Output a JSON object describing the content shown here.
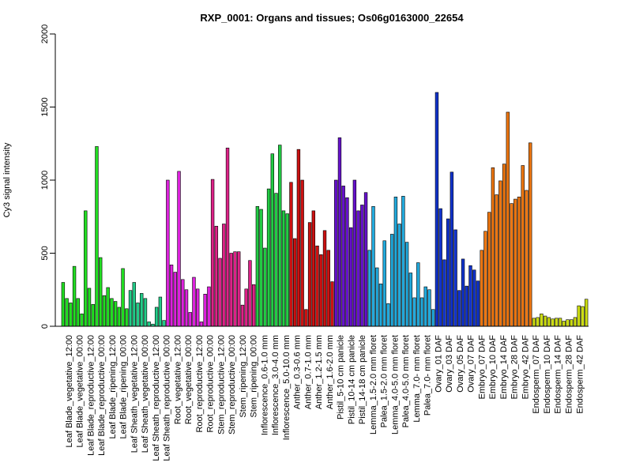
{
  "chart_data": {
    "type": "bar",
    "title": "RXP_0001: Organs and tissues; Os06g0163000_22654",
    "xlabel": "",
    "ylabel": "Cy3 signal intensity",
    "ylim": [
      0,
      2000
    ],
    "yticks": [
      0,
      500,
      1000,
      1500,
      2000
    ],
    "grid": false,
    "legend": "none",
    "x_tick_labels": [
      "Leaf Blade_vegetative_12:00",
      "Leaf Blade_vegetative_00:00",
      "Leaf Blade_reproductive_12:00",
      "Leaf Blade_reproductive_00:00",
      "Leaf Blade_ripening_12:00",
      "Leaf Blade_ripening_00:00",
      "Leaf Sheath_vegetative_12:00",
      "Leaf Sheath_vegetative_00:00",
      "Leaf Sheath_reproductive_12:00",
      "Leaf Sheath_reproductive_00:00",
      "Root_vegetative_12:00",
      "Root_vegetative_00:00",
      "Root_reproductive_12:00",
      "Root_reproductive_00:00",
      "Stem_reproductive_12:00",
      "Stem_reproductive_00:00",
      "Stem_ripening_12:00",
      "Stem_ripening_00:00",
      "Inflorescence_0.6-1.0 mm",
      "Inflorescence_3.0-4.0 mm",
      "Inflorescence_5.0-10.0 mm",
      "Anther_0.3-0.6 mm",
      "Anther_0.7-1.0 mm",
      "Anther_1.2-1.5 mm",
      "Anther_1.6-2.0 mm",
      "Pistil_5-10 cm panicle",
      "Pistil_10-14 cm panicle",
      "Pistil_14-18 cm panicle",
      "Lemma_1.5-2.0 mm floret",
      "Palea_1.5-2.0 mm floret",
      "Lemma_4.0-5.0 mm floret",
      "Palea_4.0-5.0 mm floret",
      "Lemma_7.0- mm floret",
      "Palea_7.0- mm floret",
      "Ovary_01 DAF",
      "Ovary_03 DAF",
      "Ovary_05 DAF",
      "Ovary_07 DAF",
      "Embryo_07 DAF",
      "Embryo_10 DAF",
      "Embryo_14 DAF",
      "Embryo_28 DAF",
      "Embryo_42 DAF",
      "Endosperm_07 DAF",
      "Endosperm_10 DAF",
      "Endosperm_14 DAF",
      "Endosperm_28 DAF",
      "Endosperm_42 DAF"
    ],
    "groups": [
      {
        "tissue": "Leaf Blade_vegetative_12:00",
        "color": "#22dd22",
        "values": [
          300,
          190,
          160
        ]
      },
      {
        "tissue": "Leaf Blade_vegetative_00:00",
        "color": "#22dd22",
        "values": [
          410,
          190,
          85
        ]
      },
      {
        "tissue": "Leaf Blade_reproductive_12:00",
        "color": "#22dd22",
        "values": [
          790,
          260,
          150
        ]
      },
      {
        "tissue": "Leaf Blade_reproductive_00:00",
        "color": "#22dd22",
        "values": [
          1230,
          470,
          210
        ]
      },
      {
        "tissue": "Leaf Blade_ripening_12:00",
        "color": "#22dd22",
        "values": [
          265,
          190,
          170
        ]
      },
      {
        "tissue": "Leaf Blade_ripening_00:00",
        "color": "#22dd22",
        "values": [
          130,
          395,
          120
        ]
      },
      {
        "tissue": "Leaf Sheath_vegetative_12:00",
        "color": "#22cc88",
        "values": [
          245,
          300,
          160
        ]
      },
      {
        "tissue": "Leaf Sheath_vegetative_00:00",
        "color": "#22cc88",
        "values": [
          225,
          190,
          30
        ]
      },
      {
        "tissue": "Leaf Sheath_reproductive_12:00",
        "color": "#22cc88",
        "values": [
          15,
          130,
          200
        ]
      },
      {
        "tissue": "Leaf Sheath_reproductive_00:00",
        "color": "#22cc88",
        "values": [
          40
        ]
      },
      {
        "tissue": "Root_vegetative_12:00",
        "color": "#dd22dd",
        "values": [
          1000,
          420,
          370
        ]
      },
      {
        "tissue": "Root_vegetative_00:00",
        "color": "#dd22dd",
        "values": [
          1060,
          320,
          250
        ]
      },
      {
        "tissue": "Root_reproductive_12:00",
        "color": "#dd22dd",
        "values": [
          95,
          335,
          255
        ]
      },
      {
        "tissue": "Root_reproductive_00:00",
        "color": "#dd22dd",
        "values": [
          30,
          220,
          270
        ]
      },
      {
        "tissue": "Stem_reproductive_12:00",
        "color": "#dd2288",
        "values": [
          1005,
          685,
          465
        ]
      },
      {
        "tissue": "Stem_reproductive_00:00",
        "color": "#dd2288",
        "values": [
          700,
          1220,
          500
        ]
      },
      {
        "tissue": "Stem_ripening_12:00",
        "color": "#dd2288",
        "values": [
          510,
          510,
          145
        ]
      },
      {
        "tissue": "Stem_ripening_00:00",
        "color": "#dd2288",
        "values": [
          255,
          450,
          285
        ]
      },
      {
        "tissue": "Inflorescence_0.6-1.0 mm",
        "color": "#22cc44",
        "values": [
          820,
          800,
          535
        ]
      },
      {
        "tissue": "Inflorescence_3.0-4.0 mm",
        "color": "#22cc44",
        "values": [
          940,
          1180,
          910
        ]
      },
      {
        "tissue": "Inflorescence_5.0-10.0 mm",
        "color": "#22cc44",
        "values": [
          1240,
          790,
          770
        ]
      },
      {
        "tissue": "Anther_0.3-0.6 mm",
        "color": "#cc1111",
        "values": [
          985,
          600
        ]
      },
      {
        "tissue": "Anther_0.7-1.0 mm",
        "color": "#cc1111",
        "values": [
          1210,
          1000,
          115
        ]
      },
      {
        "tissue": "Anther_1.2-1.5 mm",
        "color": "#cc1111",
        "values": [
          710,
          790,
          550
        ]
      },
      {
        "tissue": "Anther_1.6-2.0 mm",
        "color": "#cc1111",
        "values": [
          490,
          655,
          520,
          305
        ]
      },
      {
        "tissue": "Pistil_5-10 cm panicle",
        "color": "#6611cc",
        "values": [
          1000,
          1290,
          960
        ]
      },
      {
        "tissue": "Pistil_10-14 cm panicle",
        "color": "#6611cc",
        "values": [
          880,
          675,
          1000
        ]
      },
      {
        "tissue": "Pistil_14-18 cm panicle",
        "color": "#6611cc",
        "values": [
          790,
          830,
          915
        ]
      },
      {
        "tissue": "Lemma_1.5-2.0 mm floret",
        "color": "#22aadd",
        "values": [
          520,
          820,
          400
        ]
      },
      {
        "tissue": "Palea_1.5-2.0 mm floret",
        "color": "#22aadd",
        "values": [
          290,
          585,
          155
        ]
      },
      {
        "tissue": "Lemma_4.0-5.0 mm floret",
        "color": "#22aadd",
        "values": [
          630,
          885,
          700
        ]
      },
      {
        "tissue": "Palea_4.0-5.0 mm floret",
        "color": "#22aadd",
        "values": [
          890,
          575,
          365
        ]
      },
      {
        "tissue": "Lemma_7.0- mm floret",
        "color": "#22aadd",
        "values": [
          195,
          435,
          195
        ]
      },
      {
        "tissue": "Palea_7.0- mm floret",
        "color": "#22aadd",
        "values": [
          270,
          250,
          115
        ]
      },
      {
        "tissue": "Ovary_01 DAF",
        "color": "#1133cc",
        "values": [
          1600,
          805,
          455
        ]
      },
      {
        "tissue": "Ovary_03 DAF",
        "color": "#1133cc",
        "values": [
          735,
          1055,
          660
        ]
      },
      {
        "tissue": "Ovary_05 DAF",
        "color": "#1133cc",
        "values": [
          245,
          460,
          275
        ]
      },
      {
        "tissue": "Ovary_07 DAF",
        "color": "#1133cc",
        "values": [
          415,
          385,
          310
        ]
      },
      {
        "tissue": "Embryo_07 DAF",
        "color": "#ee7711",
        "values": [
          520,
          650,
          780
        ]
      },
      {
        "tissue": "Embryo_10 DAF",
        "color": "#ee7711",
        "values": [
          1085,
          900,
          995
        ]
      },
      {
        "tissue": "Embryo_14 DAF",
        "color": "#ee7711",
        "values": [
          1110,
          1465,
          840
        ]
      },
      {
        "tissue": "Embryo_28 DAF",
        "color": "#ee7711",
        "values": [
          870,
          885,
          1100
        ]
      },
      {
        "tissue": "Embryo_42 DAF",
        "color": "#ee7711",
        "values": [
          930,
          1255
        ]
      },
      {
        "tissue": "Endosperm_07 DAF",
        "color": "#ccdd11",
        "values": [
          55,
          60,
          85
        ]
      },
      {
        "tissue": "Endosperm_10 DAF",
        "color": "#ccdd11",
        "values": [
          70,
          60,
          50
        ]
      },
      {
        "tissue": "Endosperm_14 DAF",
        "color": "#ccdd11",
        "values": [
          55,
          55,
          35
        ]
      },
      {
        "tissue": "Endosperm_28 DAF",
        "color": "#ccdd11",
        "values": [
          45,
          45,
          60
        ]
      },
      {
        "tissue": "Endosperm_42 DAF",
        "color": "#ccdd11",
        "values": [
          140,
          135,
          185
        ]
      }
    ]
  }
}
